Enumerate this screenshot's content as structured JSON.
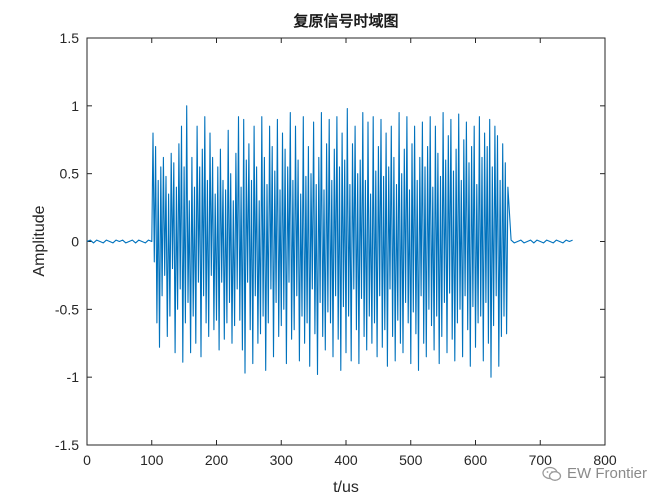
{
  "chart_data": {
    "type": "line",
    "title": "复原信号时域图",
    "xlabel": "t/us",
    "ylabel": "Amplitude",
    "xlim": [
      0,
      800
    ],
    "ylim": [
      -1.5,
      1.5
    ],
    "xticks": [
      0,
      100,
      200,
      300,
      400,
      500,
      600,
      700,
      800
    ],
    "yticks": [
      1.5,
      1,
      0.5,
      0,
      -0.5,
      -1,
      -1.5
    ],
    "xtick_labels": [
      "0",
      "100",
      "200",
      "300",
      "400",
      "500",
      "600",
      "700",
      "800"
    ],
    "ytick_labels": [
      "1.5",
      "1",
      "0.5",
      "0",
      "-0.5",
      "-1",
      "-1.5"
    ],
    "grid": false,
    "series": [
      {
        "color": "#0072BD",
        "x": [
          0,
          5,
          10,
          15,
          20,
          25,
          30,
          35,
          40,
          45,
          50,
          55,
          60,
          65,
          70,
          75,
          80,
          85,
          90,
          95,
          100,
          102,
          104,
          106,
          108,
          110,
          112,
          114,
          116,
          118,
          120,
          122,
          124,
          126,
          128,
          130,
          132,
          134,
          136,
          138,
          140,
          142,
          144,
          146,
          148,
          150,
          152,
          154,
          156,
          158,
          160,
          162,
          164,
          166,
          168,
          170,
          172,
          174,
          176,
          178,
          180,
          182,
          184,
          186,
          188,
          190,
          192,
          194,
          196,
          198,
          200,
          202,
          204,
          206,
          208,
          210,
          212,
          214,
          216,
          218,
          220,
          222,
          224,
          226,
          228,
          230,
          232,
          234,
          236,
          238,
          240,
          242,
          244,
          246,
          248,
          250,
          252,
          254,
          256,
          258,
          260,
          262,
          264,
          266,
          268,
          270,
          272,
          274,
          276,
          278,
          280,
          282,
          284,
          286,
          288,
          290,
          292,
          294,
          296,
          298,
          300,
          302,
          304,
          306,
          308,
          310,
          312,
          314,
          316,
          318,
          320,
          322,
          324,
          326,
          328,
          330,
          332,
          334,
          336,
          338,
          340,
          342,
          344,
          346,
          348,
          350,
          352,
          354,
          356,
          358,
          360,
          362,
          364,
          366,
          368,
          370,
          372,
          374,
          376,
          378,
          380,
          382,
          384,
          386,
          388,
          390,
          392,
          394,
          396,
          398,
          400,
          402,
          404,
          406,
          408,
          410,
          412,
          414,
          416,
          418,
          420,
          422,
          424,
          426,
          428,
          430,
          432,
          434,
          436,
          438,
          440,
          442,
          444,
          446,
          448,
          450,
          452,
          454,
          456,
          458,
          460,
          462,
          464,
          466,
          468,
          470,
          472,
          474,
          476,
          478,
          480,
          482,
          484,
          486,
          488,
          490,
          492,
          494,
          496,
          498,
          500,
          502,
          504,
          506,
          508,
          510,
          512,
          514,
          516,
          518,
          520,
          522,
          524,
          526,
          528,
          530,
          532,
          534,
          536,
          538,
          540,
          542,
          544,
          546,
          548,
          550,
          552,
          554,
          556,
          558,
          560,
          562,
          564,
          566,
          568,
          570,
          572,
          574,
          576,
          578,
          580,
          582,
          584,
          586,
          588,
          590,
          592,
          594,
          596,
          598,
          600,
          602,
          604,
          606,
          608,
          610,
          612,
          614,
          616,
          618,
          620,
          622,
          624,
          626,
          628,
          630,
          632,
          634,
          636,
          638,
          640,
          642,
          644,
          646,
          648,
          650,
          655,
          660,
          665,
          670,
          675,
          680,
          685,
          690,
          695,
          700,
          705,
          710,
          715,
          720,
          725,
          730,
          735,
          740,
          745,
          750
        ],
        "y": [
          0.0,
          0.01,
          -0.01,
          0.01,
          0.0,
          -0.01,
          0.01,
          0.0,
          -0.01,
          0.01,
          0.0,
          0.01,
          -0.01,
          0.0,
          0.01,
          -0.01,
          0.01,
          0.0,
          -0.01,
          0.01,
          0.0,
          0.8,
          -0.15,
          0.7,
          -0.6,
          0.45,
          -0.78,
          0.55,
          -0.4,
          0.62,
          -0.25,
          0.48,
          -0.7,
          0.35,
          -0.55,
          0.65,
          -0.2,
          0.58,
          -0.82,
          0.4,
          -0.5,
          0.72,
          -0.35,
          0.85,
          -0.89,
          0.55,
          -0.6,
          1.0,
          -0.45,
          0.3,
          -0.82,
          0.62,
          -0.55,
          0.4,
          -0.75,
          0.85,
          -0.3,
          0.55,
          -0.85,
          0.68,
          -0.4,
          0.92,
          -0.6,
          0.45,
          -0.7,
          0.8,
          -0.25,
          0.62,
          -0.65,
          0.35,
          -0.58,
          0.55,
          -0.8,
          0.68,
          -0.3,
          0.45,
          -0.72,
          0.38,
          -0.6,
          0.82,
          -0.45,
          0.5,
          -0.75,
          0.3,
          -0.62,
          0.65,
          -0.35,
          0.92,
          -0.58,
          0.4,
          -0.8,
          0.9,
          -0.97,
          0.6,
          -0.3,
          0.72,
          -0.65,
          0.45,
          -0.9,
          0.85,
          -0.4,
          0.55,
          -0.75,
          0.3,
          -0.68,
          0.92,
          -0.55,
          0.62,
          -0.95,
          0.42,
          -0.6,
          0.85,
          -0.35,
          0.7,
          -0.85,
          0.52,
          -0.45,
          0.9,
          -0.7,
          0.38,
          -0.62,
          0.8,
          -0.5,
          0.68,
          -0.9,
          0.55,
          -0.3,
          0.95,
          -0.72,
          0.45,
          -0.65,
          0.85,
          -0.4,
          0.6,
          -0.88,
          0.35,
          -0.55,
          0.92,
          -0.75,
          0.48,
          -0.6,
          0.7,
          -0.92,
          0.5,
          -0.35,
          0.88,
          -0.68,
          0.42,
          -0.98,
          0.62,
          -0.45,
          0.95,
          -0.7,
          0.38,
          -0.8,
          0.72,
          -0.52,
          0.9,
          -0.6,
          0.45,
          -0.85,
          0.68,
          -0.4,
          0.92,
          -0.72,
          0.55,
          -0.95,
          0.8,
          -0.48,
          0.6,
          -0.82,
          0.98,
          -0.55,
          0.42,
          -0.88,
          0.72,
          -0.35,
          0.85,
          -0.65,
          0.5,
          -0.9,
          0.6,
          -0.42,
          0.95,
          -0.7,
          0.45,
          -0.8,
          0.88,
          -0.55,
          0.35,
          -0.75,
          0.92,
          -0.6,
          0.52,
          -0.85,
          0.7,
          -0.4,
          0.9,
          -0.78,
          0.48,
          -0.65,
          0.8,
          -0.92,
          0.55,
          -0.35,
          0.85,
          -0.7,
          0.62,
          -0.88,
          0.42,
          -0.58,
          0.95,
          -0.75,
          0.5,
          -0.82,
          0.68,
          -0.45,
          0.92,
          -0.6,
          0.38,
          -0.9,
          0.72,
          -0.52,
          0.85,
          -0.68,
          0.45,
          -0.95,
          0.62,
          -0.4,
          0.88,
          -0.75,
          0.55,
          -0.85,
          0.7,
          -0.5,
          0.92,
          -0.62,
          0.4,
          -0.8,
          0.85,
          -0.55,
          0.65,
          -0.9,
          0.48,
          -0.7,
          0.95,
          -0.45,
          0.6,
          -0.82,
          0.78,
          -0.38,
          0.9,
          -0.72,
          0.52,
          -0.88,
          0.68,
          -0.6,
          0.94,
          -0.5,
          0.45,
          -0.85,
          0.75,
          -0.4,
          0.88,
          -0.65,
          0.58,
          -0.92,
          0.7,
          -0.48,
          0.85,
          -0.78,
          0.42,
          -0.6,
          0.92,
          -0.55,
          0.62,
          -0.88,
          0.8,
          -0.45,
          0.7,
          -0.75,
          0.9,
          -1.0,
          0.55,
          -0.62,
          0.85,
          -0.4,
          0.78,
          -0.92,
          0.45,
          -0.7,
          0.72,
          -0.55,
          0.58,
          -0.68,
          0.4,
          0.01,
          -0.01,
          0.0,
          0.01,
          -0.01,
          0.0,
          0.01,
          -0.01,
          0.01,
          0.0,
          -0.01,
          0.01,
          0.0,
          -0.01,
          0.01,
          0.0,
          -0.01,
          0.01,
          0.0,
          0.01
        ]
      }
    ]
  },
  "watermark": {
    "text": "EW Frontier",
    "icon": "wechat-icon"
  }
}
